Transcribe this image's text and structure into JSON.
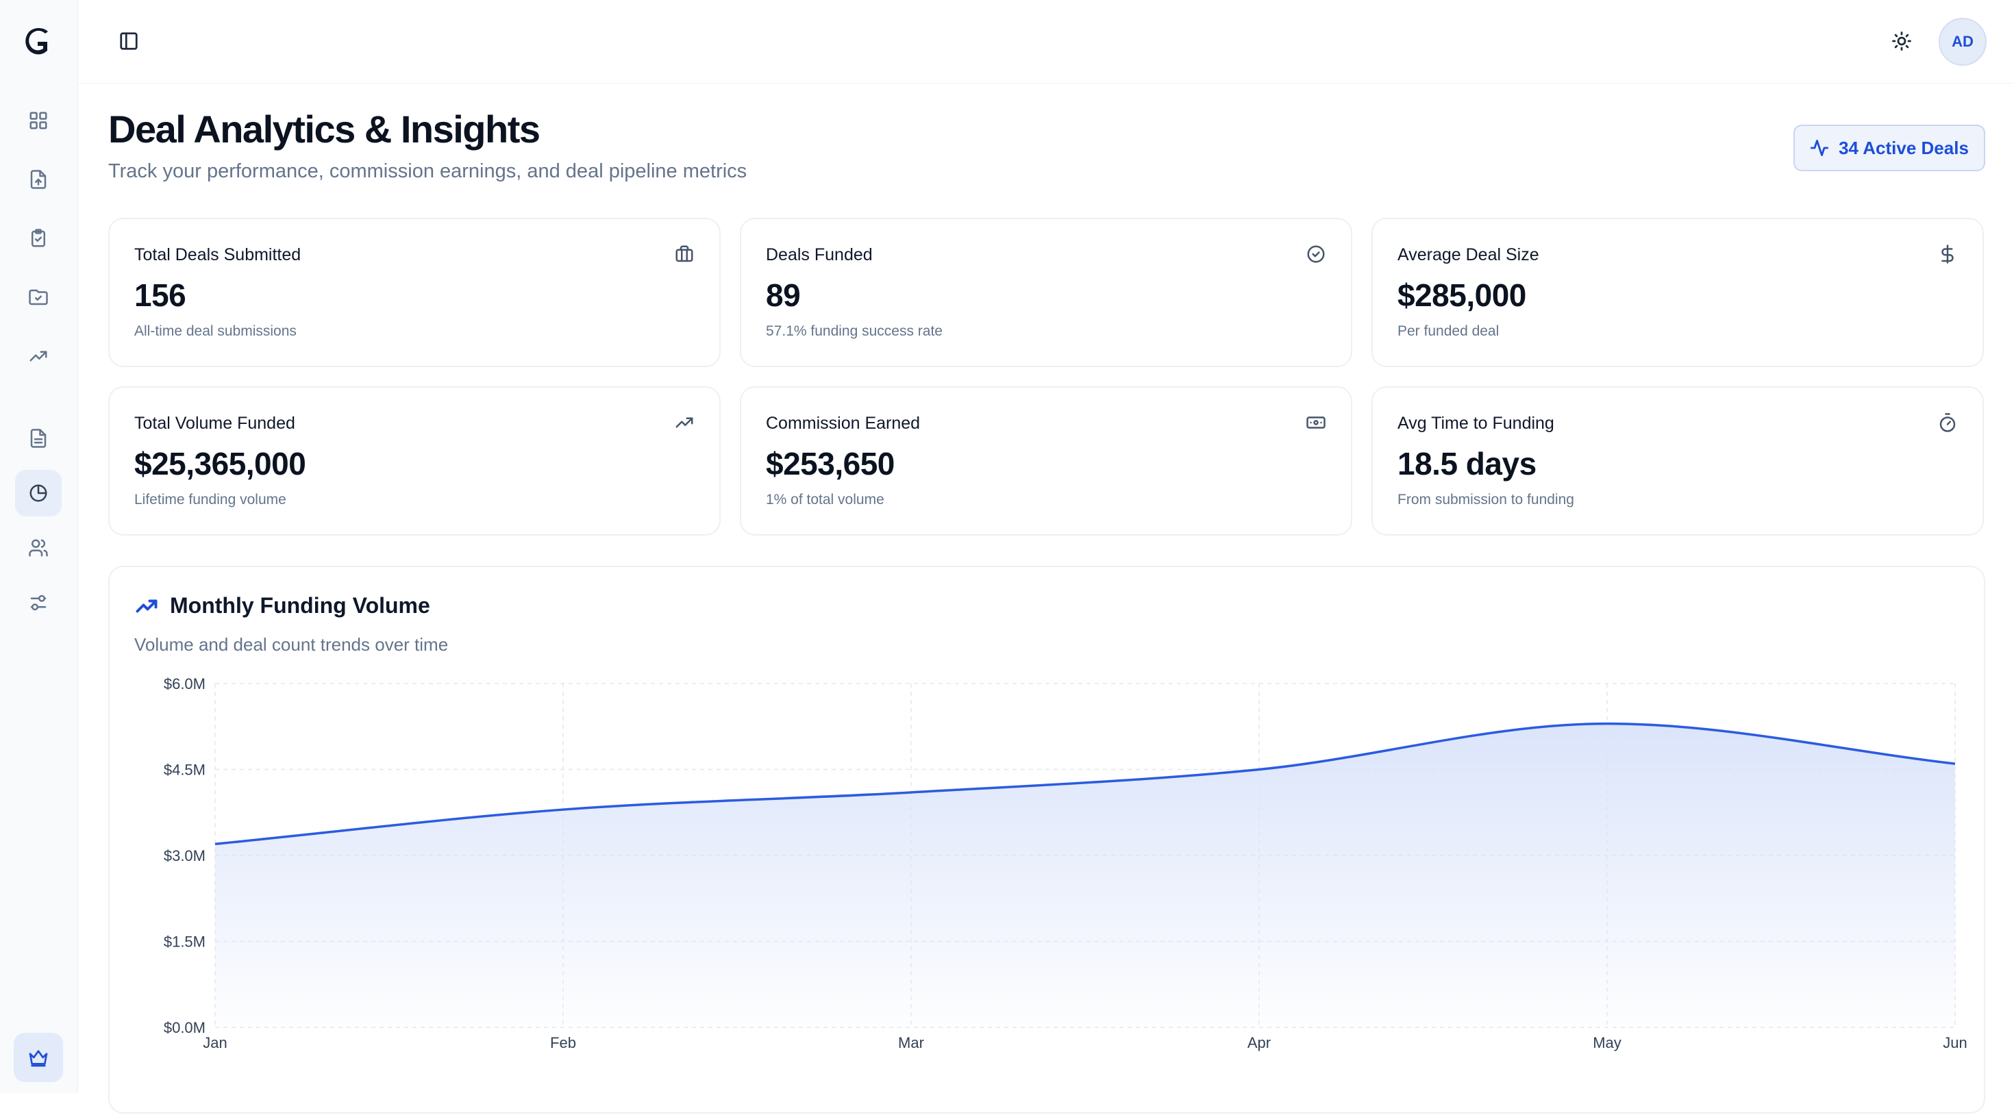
{
  "sidebar": {
    "logo_icon": "brand-logo",
    "items": [
      {
        "name": "dashboard",
        "icon": "grid-icon",
        "active": false
      },
      {
        "name": "deal-submission",
        "icon": "file-upload-icon",
        "active": false
      },
      {
        "name": "tasks",
        "icon": "clipboard-check-icon",
        "active": false
      },
      {
        "name": "documents",
        "icon": "folder-check-icon",
        "active": false
      },
      {
        "name": "performance",
        "icon": "trending-up-icon",
        "active": false
      },
      {
        "name": "reports",
        "icon": "file-text-icon",
        "active": false
      },
      {
        "name": "analytics",
        "icon": "pie-chart-icon",
        "active": true
      },
      {
        "name": "users",
        "icon": "users-icon",
        "active": false
      },
      {
        "name": "settings",
        "icon": "sliders-icon",
        "active": false
      }
    ],
    "upgrade_icon": "crown-icon"
  },
  "topbar": {
    "toggle_icon": "sidebar-toggle-icon",
    "theme_icon": "sun-icon",
    "avatar_initials": "AD"
  },
  "header": {
    "title": "Deal Analytics & Insights",
    "subtitle": "Track your performance, commission earnings, and deal pipeline metrics",
    "badge": "34 Active Deals"
  },
  "stats": [
    {
      "title": "Total Deals Submitted",
      "value": "156",
      "sub": "All-time deal submissions",
      "icon": "briefcase-icon"
    },
    {
      "title": "Deals Funded",
      "value": "89",
      "sub": "57.1% funding success rate",
      "icon": "check-circle-icon"
    },
    {
      "title": "Average Deal Size",
      "value": "$285,000",
      "sub": "Per funded deal",
      "icon": "dollar-icon"
    },
    {
      "title": "Total Volume Funded",
      "value": "$25,365,000",
      "sub": "Lifetime funding volume",
      "icon": "trending-up-icon"
    },
    {
      "title": "Commission Earned",
      "value": "$253,650",
      "sub": "1% of total volume",
      "icon": "banknote-icon"
    },
    {
      "title": "Avg Time to Funding",
      "value": "18.5 days",
      "sub": "From submission to funding",
      "icon": "timer-icon"
    }
  ],
  "chart_section": {
    "title": "Monthly Funding Volume",
    "subtitle": "Volume and deal count trends over time"
  },
  "chart_data": {
    "type": "area",
    "categories": [
      "Jan",
      "Feb",
      "Mar",
      "Apr",
      "May",
      "Jun"
    ],
    "values": [
      3.2,
      3.8,
      4.1,
      4.5,
      5.3,
      4.6
    ],
    "unit": "$M",
    "ylim": [
      0,
      6
    ],
    "yticks": [
      "$0.0M",
      "$1.5M",
      "$3.0M",
      "$4.5M",
      "$6.0M"
    ],
    "grid": true,
    "line_color": "#2b5ce0",
    "fill_color": "#d9e3fa"
  }
}
